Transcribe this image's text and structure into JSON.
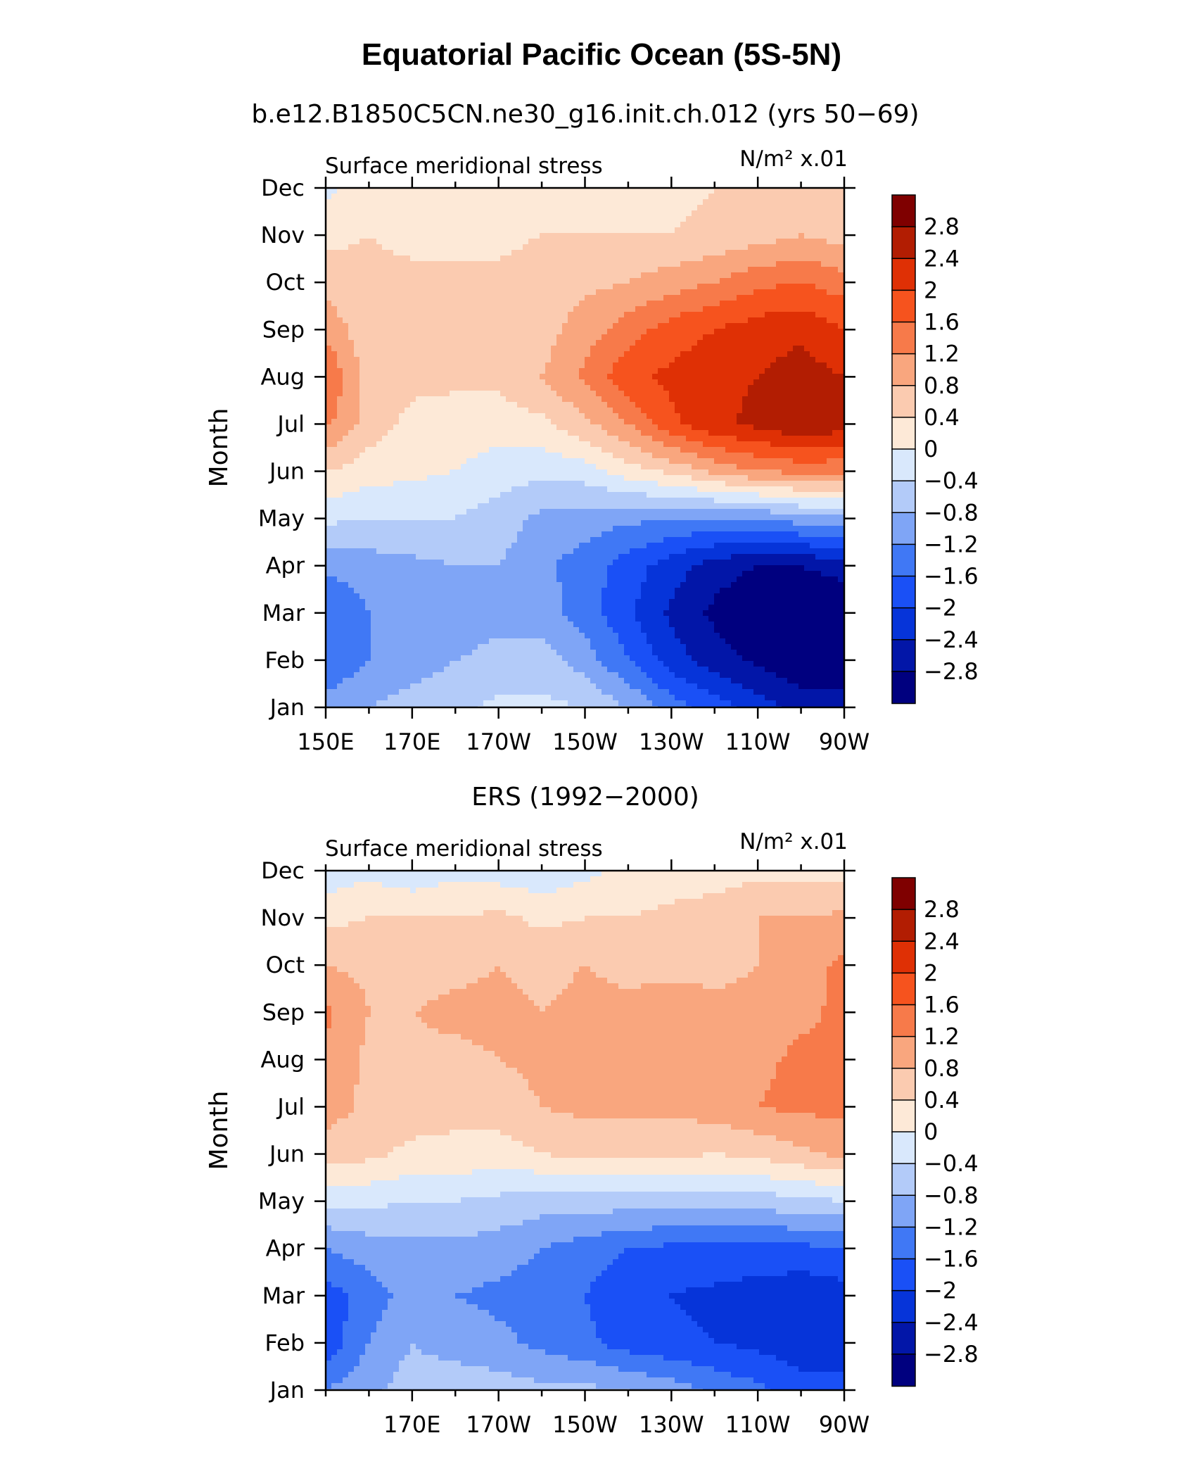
{
  "figure": {
    "title": "Equatorial Pacific Ocean (5S-5N)"
  },
  "palette": [
    {
      "value_range": [
        -999,
        -2.8
      ],
      "color": "#00007f"
    },
    {
      "value_range": [
        -2.8,
        -2.4
      ],
      "color": "#0216a8"
    },
    {
      "value_range": [
        -2.4,
        -2.0
      ],
      "color": "#0634d9"
    },
    {
      "value_range": [
        -2.0,
        -1.6
      ],
      "color": "#1a50f6"
    },
    {
      "value_range": [
        -1.6,
        -1.2
      ],
      "color": "#4078f5"
    },
    {
      "value_range": [
        -1.2,
        -0.8
      ],
      "color": "#7fa5f6"
    },
    {
      "value_range": [
        -0.8,
        -0.4
      ],
      "color": "#b3cbf9"
    },
    {
      "value_range": [
        -0.4,
        0.0
      ],
      "color": "#d9e8fc"
    },
    {
      "value_range": [
        0.0,
        0.4
      ],
      "color": "#fde9d7"
    },
    {
      "value_range": [
        0.4,
        0.8
      ],
      "color": "#fbcbb0"
    },
    {
      "value_range": [
        0.8,
        1.2
      ],
      "color": "#f9a67e"
    },
    {
      "value_range": [
        1.2,
        1.6
      ],
      "color": "#f77a4a"
    },
    {
      "value_range": [
        1.6,
        2.0
      ],
      "color": "#f6531e"
    },
    {
      "value_range": [
        2.0,
        2.4
      ],
      "color": "#df3005"
    },
    {
      "value_range": [
        2.4,
        2.8
      ],
      "color": "#b21d02"
    },
    {
      "value_range": [
        2.8,
        999
      ],
      "color": "#7f0000"
    }
  ],
  "chart_data": [
    {
      "type": "heatmap",
      "title": "b.e12.B1850C5CN.ne30_g16.init.ch.012 (yrs 50−69)",
      "left_string": "Surface meridional stress",
      "right_string": "N/m² x.01",
      "ylabel": "Month",
      "xlabel": "",
      "x_ticks": [
        "150E",
        "170E",
        "170W",
        "150W",
        "130W",
        "110W",
        "90W"
      ],
      "x_tick_values": [
        150,
        170,
        190,
        210,
        230,
        250,
        270
      ],
      "xlim": [
        150,
        270
      ],
      "y_ticks": [
        "Jan",
        "Feb",
        "Mar",
        "Apr",
        "May",
        "Jun",
        "Jul",
        "Aug",
        "Sep",
        "Oct",
        "Nov",
        "Dec"
      ],
      "colorbar_labels": [
        "2.8",
        "2.4",
        "2",
        "1.6",
        "1.2",
        "0.8",
        "0.4",
        "0",
        "−0.4",
        "−0.8",
        "−1.2",
        "−1.6",
        "−2",
        "−2.4",
        "−2.8"
      ],
      "x": [
        150,
        160,
        170,
        180,
        190,
        200,
        210,
        220,
        230,
        240,
        250,
        260,
        270
      ],
      "y": [
        "Jan",
        "Feb",
        "Mar",
        "Apr",
        "May",
        "Jun",
        "Jul",
        "Aug",
        "Sep",
        "Oct",
        "Nov",
        "Dec"
      ],
      "values": [
        [
          -1.0,
          -0.8,
          -0.6,
          -0.5,
          -0.3,
          -0.3,
          -0.4,
          -0.8,
          -1.4,
          -1.8,
          -2.2,
          -2.6,
          -2.7
        ],
        [
          -1.6,
          -1.2,
          -1.0,
          -0.8,
          -0.7,
          -0.6,
          -1.0,
          -1.6,
          -2.2,
          -2.6,
          -2.9,
          -3.1,
          -3.0
        ],
        [
          -1.6,
          -1.2,
          -1.1,
          -1.0,
          -0.9,
          -1.0,
          -1.4,
          -1.9,
          -2.5,
          -2.9,
          -3.2,
          -3.3,
          -3.2
        ],
        [
          -1.1,
          -1.0,
          -0.9,
          -0.8,
          -0.8,
          -1.1,
          -1.4,
          -1.8,
          -2.2,
          -2.6,
          -2.8,
          -2.8,
          -2.6
        ],
        [
          -0.3,
          -0.4,
          -0.4,
          -0.4,
          -0.6,
          -0.9,
          -1.0,
          -1.1,
          -1.2,
          -1.2,
          -1.2,
          -1.0,
          -0.9
        ],
        [
          0.4,
          0.2,
          0.1,
          0.0,
          -0.2,
          -0.3,
          -0.2,
          0.2,
          0.5,
          0.9,
          1.2,
          1.3,
          1.3
        ],
        [
          1.3,
          0.6,
          0.3,
          0.2,
          0.2,
          0.3,
          0.7,
          1.2,
          1.9,
          2.3,
          2.5,
          2.8,
          2.6
        ],
        [
          1.6,
          0.6,
          0.5,
          0.5,
          0.5,
          0.8,
          1.3,
          1.9,
          2.1,
          2.3,
          2.4,
          2.6,
          2.4
        ],
        [
          1.1,
          0.5,
          0.5,
          0.5,
          0.5,
          0.6,
          1.0,
          1.4,
          1.8,
          2.0,
          2.2,
          2.3,
          2.0
        ],
        [
          0.6,
          0.5,
          0.5,
          0.5,
          0.5,
          0.6,
          0.7,
          0.8,
          1.0,
          1.2,
          1.5,
          1.6,
          1.4
        ],
        [
          0.3,
          0.4,
          0.3,
          0.3,
          0.3,
          0.4,
          0.4,
          0.4,
          0.4,
          0.5,
          0.6,
          0.8,
          0.6
        ],
        [
          -0.1,
          0.2,
          0.1,
          0.1,
          0.2,
          0.2,
          0.2,
          0.2,
          0.3,
          0.4,
          0.5,
          0.5,
          0.4
        ]
      ]
    },
    {
      "type": "heatmap",
      "title": "ERS (1992−2000)",
      "left_string": "Surface meridional stress",
      "right_string": "N/m² x.01",
      "ylabel": "Month",
      "xlabel": "",
      "x_ticks": [
        "170E",
        "170W",
        "150W",
        "130W",
        "110W",
        "90W"
      ],
      "x_tick_values": [
        170,
        190,
        210,
        230,
        250,
        270
      ],
      "xlim": [
        150,
        270
      ],
      "y_ticks": [
        "Jan",
        "Feb",
        "Mar",
        "Apr",
        "May",
        "Jun",
        "Jul",
        "Aug",
        "Sep",
        "Oct",
        "Nov",
        "Dec"
      ],
      "colorbar_labels": [
        "2.8",
        "2.4",
        "2",
        "1.6",
        "1.2",
        "0.8",
        "0.4",
        "0",
        "−0.4",
        "−0.8",
        "−1.2",
        "−1.6",
        "−2",
        "−2.4",
        "−2.8"
      ],
      "x": [
        150,
        160,
        170,
        180,
        190,
        200,
        210,
        220,
        230,
        240,
        250,
        260,
        270
      ],
      "y": [
        "Jan",
        "Feb",
        "Mar",
        "Apr",
        "May",
        "Jun",
        "Jul",
        "Aug",
        "Sep",
        "Oct",
        "Nov",
        "Dec"
      ],
      "values": [
        [
          -1.2,
          -0.9,
          -0.6,
          -0.5,
          -0.6,
          -0.7,
          -0.7,
          -0.8,
          -1.0,
          -1.3,
          -1.5,
          -1.8,
          -1.8
        ],
        [
          -1.9,
          -1.2,
          -0.8,
          -1.0,
          -1.1,
          -1.3,
          -1.5,
          -1.8,
          -1.9,
          -2.0,
          -2.1,
          -2.3,
          -2.3
        ],
        [
          -1.8,
          -1.4,
          -1.0,
          -1.2,
          -1.3,
          -1.4,
          -1.6,
          -1.9,
          -2.0,
          -2.1,
          -2.2,
          -2.3,
          -2.2
        ],
        [
          -1.2,
          -1.0,
          -0.9,
          -0.9,
          -1.0,
          -1.2,
          -1.4,
          -1.6,
          -1.7,
          -1.7,
          -1.7,
          -1.7,
          -1.6
        ],
        [
          -0.3,
          -0.3,
          -0.4,
          -0.4,
          -0.5,
          -0.6,
          -0.6,
          -0.6,
          -0.6,
          -0.6,
          -0.6,
          -0.5,
          -0.4
        ],
        [
          0.6,
          0.5,
          0.3,
          0.3,
          0.2,
          0.4,
          0.5,
          0.5,
          0.5,
          0.4,
          0.5,
          0.7,
          0.9
        ],
        [
          1.0,
          0.7,
          0.6,
          0.5,
          0.6,
          0.8,
          0.9,
          0.9,
          0.9,
          1.0,
          1.2,
          1.3,
          1.3
        ],
        [
          1.1,
          0.7,
          0.7,
          0.7,
          0.8,
          0.9,
          0.9,
          1.0,
          1.0,
          0.9,
          1.1,
          1.3,
          1.3
        ],
        [
          1.3,
          0.8,
          0.8,
          0.9,
          0.9,
          0.8,
          0.9,
          0.9,
          1.0,
          0.9,
          0.9,
          1.1,
          1.3
        ],
        [
          0.8,
          0.7,
          0.6,
          0.7,
          0.8,
          0.7,
          0.8,
          0.7,
          0.7,
          0.7,
          0.8,
          1.0,
          1.3
        ],
        [
          0.3,
          0.4,
          0.4,
          0.4,
          0.5,
          0.3,
          0.4,
          0.4,
          0.5,
          0.6,
          0.8,
          0.8,
          0.9
        ],
        [
          -0.3,
          -0.1,
          -0.3,
          -0.1,
          -0.2,
          -0.3,
          -0.1,
          0.1,
          0.2,
          0.2,
          0.3,
          0.3,
          0.2
        ]
      ]
    }
  ]
}
